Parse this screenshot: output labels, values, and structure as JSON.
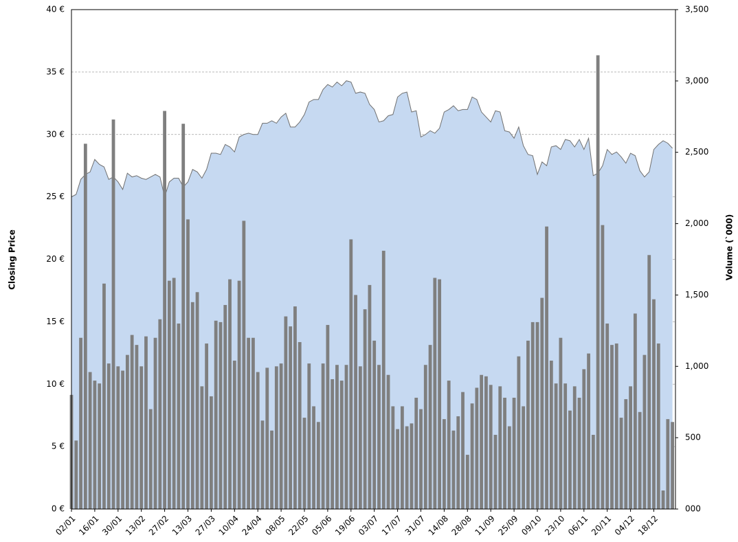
{
  "chart_data": {
    "type": "combo",
    "ylabel": "Closing Price",
    "y2label": "Volume (`000)",
    "categories": [
      "02/01",
      null,
      null,
      null,
      null,
      "16/01",
      null,
      null,
      null,
      null,
      "30/01",
      null,
      null,
      null,
      null,
      "13/02",
      null,
      null,
      null,
      null,
      "27/02",
      null,
      null,
      null,
      null,
      "13/03",
      null,
      null,
      null,
      null,
      "27/03",
      null,
      null,
      null,
      null,
      "10/04",
      null,
      null,
      null,
      null,
      "24/04",
      null,
      null,
      null,
      null,
      "08/05",
      null,
      null,
      null,
      null,
      "22/05",
      null,
      null,
      null,
      null,
      "05/06",
      null,
      null,
      null,
      null,
      "19/06",
      null,
      null,
      null,
      null,
      "03/07",
      null,
      null,
      null,
      null,
      "17/07",
      null,
      null,
      null,
      null,
      "31/07",
      null,
      null,
      null,
      null,
      "14/08",
      null,
      null,
      null,
      null,
      "28/08",
      null,
      null,
      null,
      null,
      "11/09",
      null,
      null,
      null,
      null,
      "25/09",
      null,
      null,
      null,
      null,
      "09/10",
      null,
      null,
      null,
      null,
      "23/10",
      null,
      null,
      null,
      null,
      "06/11",
      null,
      null,
      null,
      null,
      "20/11",
      null,
      null,
      null,
      null,
      "04/12",
      null,
      null,
      null,
      null,
      "18/12",
      null,
      null,
      null,
      null
    ],
    "series": [
      {
        "type": "area",
        "color": "#c6d9f1",
        "line_color": "#707070",
        "values": [
          25.0,
          25.2,
          26.4,
          26.8,
          27.0,
          28.0,
          27.6,
          27.4,
          26.4,
          26.6,
          26.2,
          25.6,
          26.9,
          26.6,
          26.7,
          26.5,
          26.4,
          26.6,
          26.8,
          26.6,
          25.0,
          26.2,
          26.5,
          26.5,
          25.8,
          26.2,
          27.2,
          27.0,
          26.5,
          27.2,
          28.5,
          28.5,
          28.4,
          29.2,
          29.0,
          28.6,
          29.8,
          30.0,
          30.1,
          30.0,
          30.0,
          30.9,
          30.9,
          31.1,
          30.9,
          31.4,
          31.7,
          30.6,
          30.6,
          31.0,
          31.6,
          32.6,
          32.8,
          32.8,
          33.6,
          34.0,
          33.8,
          34.2,
          33.9,
          34.3,
          34.2,
          33.3,
          33.4,
          33.3,
          32.4,
          32.0,
          31.0,
          31.1,
          31.5,
          31.6,
          33.0,
          33.3,
          33.4,
          31.8,
          31.9,
          29.8,
          30.0,
          30.3,
          30.1,
          30.5,
          31.8,
          32.0,
          32.3,
          31.9,
          32.0,
          32.0,
          33.0,
          32.8,
          31.8,
          31.4,
          31.0,
          31.9,
          31.8,
          30.3,
          30.2,
          29.7,
          30.6,
          29.1,
          28.4,
          28.3,
          26.8,
          27.8,
          27.5,
          29.0,
          29.1,
          28.8,
          29.6,
          29.5,
          29.0,
          29.6,
          28.8,
          29.7,
          26.7,
          26.9,
          27.5,
          28.8,
          28.4,
          28.6,
          28.2,
          27.7,
          28.5,
          28.3,
          27.1,
          26.6,
          27.0,
          28.8,
          29.2,
          29.5,
          29.3,
          28.9
        ]
      },
      {
        "type": "bar",
        "axis": "y2",
        "color": "#7f7f7f",
        "values": [
          800,
          480,
          1200,
          2560,
          960,
          900,
          880,
          1580,
          1020,
          2730,
          1000,
          970,
          1080,
          1220,
          1150,
          1000,
          1210,
          700,
          1200,
          1330,
          2790,
          1600,
          1620,
          1300,
          2700,
          2030,
          1450,
          1520,
          860,
          1160,
          790,
          1320,
          1310,
          1430,
          1610,
          1040,
          1600,
          2020,
          1200,
          1200,
          960,
          620,
          990,
          550,
          1000,
          1020,
          1350,
          1280,
          1420,
          1170,
          640,
          1020,
          720,
          610,
          1020,
          1290,
          910,
          1010,
          900,
          1010,
          1890,
          1500,
          1000,
          1400,
          1570,
          1180,
          1010,
          1810,
          940,
          720,
          560,
          720,
          580,
          600,
          780,
          700,
          1010,
          1150,
          1620,
          1610,
          630,
          900,
          550,
          650,
          820,
          380,
          740,
          850,
          940,
          930,
          870,
          520,
          860,
          780,
          580,
          780,
          1070,
          720,
          1180,
          1310,
          1310,
          1480,
          1980,
          1040,
          880,
          1200,
          880,
          690,
          860,
          780,
          980,
          1090,
          520,
          3180,
          1990,
          1300,
          1150,
          1160,
          640,
          770,
          860,
          1370,
          680,
          1080,
          1780,
          1470,
          1160,
          130,
          630,
          610
        ]
      }
    ],
    "ylim": [
      0,
      40
    ],
    "yticks": [
      {
        "value": 0,
        "label": "0 €"
      },
      {
        "value": 5,
        "label": "5 €"
      },
      {
        "value": 10,
        "label": "10 €"
      },
      {
        "value": 15,
        "label": "15 €"
      },
      {
        "value": 20,
        "label": "20 €"
      },
      {
        "value": 25,
        "label": "25 €"
      },
      {
        "value": 30,
        "label": "30 €"
      },
      {
        "value": 35,
        "label": "35 €"
      },
      {
        "value": 40,
        "label": "40 €"
      }
    ],
    "y2lim": [
      0,
      3500
    ],
    "y2ticks": [
      {
        "value": 0,
        "label": "000"
      },
      500,
      {
        "value": 1000,
        "label": "1,000"
      },
      {
        "value": 1500,
        "label": "1,500"
      },
      {
        "value": 2000,
        "label": "2,000"
      },
      {
        "value": 2500,
        "label": "2,500"
      },
      {
        "value": 3000,
        "label": "3,000"
      },
      {
        "value": 3500,
        "label": "3,500"
      }
    ],
    "grid": true
  }
}
